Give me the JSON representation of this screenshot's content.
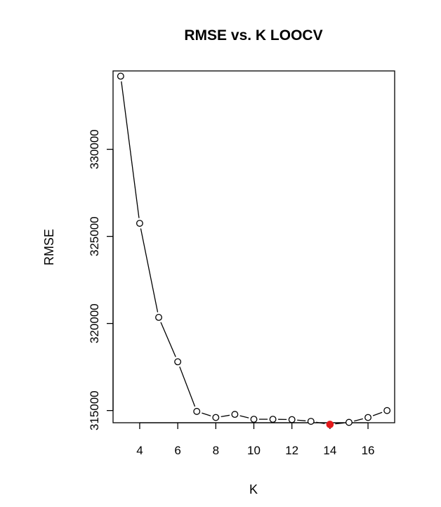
{
  "chart_data": {
    "type": "scatter",
    "title": "RMSE vs. K LOOCV",
    "xlabel": "K",
    "ylabel": "RMSE",
    "xlim": [
      2.6,
      17.4
    ],
    "ylim": [
      314300,
      334500
    ],
    "x_ticks": [
      4,
      6,
      8,
      10,
      12,
      14,
      16
    ],
    "y_ticks": [
      315000,
      320000,
      325000,
      330000
    ],
    "grid": false,
    "series": [
      {
        "x": [
          3,
          4,
          5,
          6,
          7,
          8,
          9,
          10,
          11,
          12,
          13,
          14,
          15,
          16,
          17
        ],
        "y": [
          334200,
          325750,
          320350,
          317800,
          314950,
          314600,
          314780,
          314500,
          314500,
          314480,
          314380,
          314200,
          314320,
          314600,
          315000
        ],
        "color": "#000000"
      }
    ],
    "highlight": {
      "x": 14,
      "y": 314200,
      "color": "#e31a1c"
    }
  }
}
